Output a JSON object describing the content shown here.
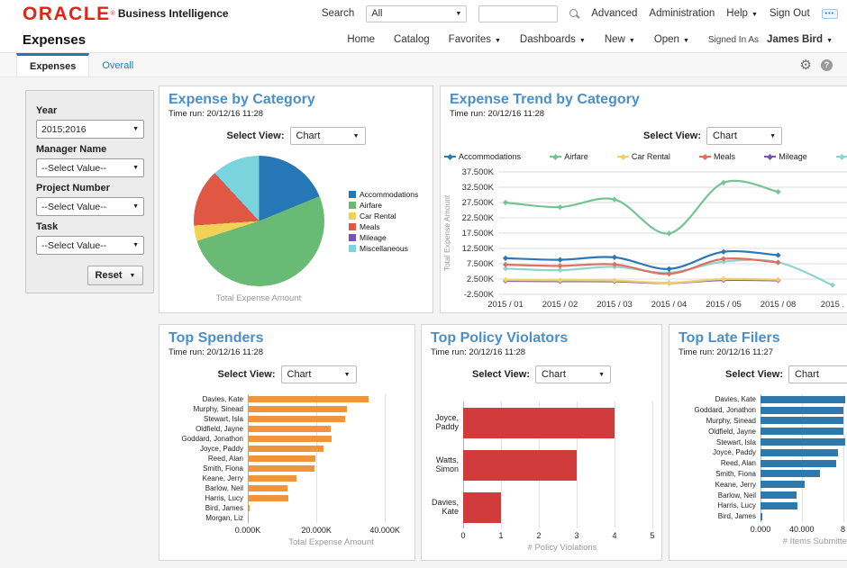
{
  "brand": {
    "logo": "ORACLE",
    "registered": "®",
    "product": "Business Intelligence"
  },
  "icons": {
    "dropdown_arrow": "▼",
    "settings_gear": "⚙",
    "help_badge": "?",
    "more_options": "•••"
  },
  "topbar": {
    "search_label": "Search",
    "scope_value": "All",
    "search_value": "",
    "links": {
      "advanced": "Advanced",
      "administration": "Administration",
      "help": "Help",
      "sign_out": "Sign Out"
    }
  },
  "navbar": {
    "page_title": "Expenses",
    "links": [
      "Home",
      "Catalog",
      "Favorites",
      "Dashboards",
      "New",
      "Open"
    ],
    "signed_in_as": "Signed In As",
    "user": "James Bird"
  },
  "tabs": {
    "active": "Expenses",
    "items": [
      "Expenses",
      "Overall"
    ]
  },
  "filters": {
    "fields": [
      {
        "label": "Year",
        "value": "2015;2016"
      },
      {
        "label": "Manager Name",
        "value": "--Select Value--"
      },
      {
        "label": "Project Number",
        "value": "--Select Value--"
      },
      {
        "label": "Task",
        "value": "--Select Value--"
      }
    ],
    "reset_label": "Reset"
  },
  "select_view_label": "Select View:",
  "chart_data": [
    {
      "type": "pie",
      "title": "Expense by Category",
      "time_run": "Time run: 20/12/16 11:28",
      "select_view": "Chart",
      "caption": "Total Expense Amount",
      "labels": [
        "Accommodations",
        "Airfare",
        "Car Rental",
        "Meals",
        "Mileage",
        "Miscellaneous"
      ],
      "values_pct": [
        18.8,
        51.2,
        3.9,
        14.1,
        0.1,
        11.9
      ],
      "colors": [
        "#2577b5",
        "#68ba74",
        "#f2d158",
        "#e05743",
        "#7a52b3",
        "#7ad4de"
      ]
    },
    {
      "type": "line",
      "title": "Expense Trend by Category",
      "time_run": "Time run: 20/12/16 11:28",
      "select_view": "Chart",
      "ylabel": "Total Expense Amount",
      "x_labels": [
        "2015 / 01",
        "2015 / 02",
        "2015 / 03",
        "2015 / 04",
        "2015 / 05",
        "2015 / 08",
        "2015 ."
      ],
      "y_ticks": [
        "37.500K",
        "32.500K",
        "27.500K",
        "22.500K",
        "17.500K",
        "12.500K",
        "7.500K",
        "2.500K",
        "-2.500K"
      ],
      "ylim": [
        -2500,
        37500
      ],
      "series": [
        {
          "name": "Accommodations",
          "color": "#2a78b5",
          "values": [
            9300,
            8800,
            9600,
            5800,
            11400,
            10300
          ]
        },
        {
          "name": "Airfare",
          "color": "#74c494",
          "values": [
            27500,
            26000,
            28500,
            17400,
            34000,
            31000
          ]
        },
        {
          "name": "Car Rental",
          "color": "#efd06a",
          "values": [
            2200,
            2100,
            2000,
            1300,
            2500,
            2300
          ]
        },
        {
          "name": "Meals",
          "color": "#dd7061",
          "values": [
            7200,
            6800,
            7300,
            4200,
            9100,
            7900
          ]
        },
        {
          "name": "Mileage",
          "color": "#7a52b3",
          "values": [
            1900,
            1800,
            1750,
            1200,
            2200,
            2050
          ]
        },
        {
          "name": "Miscellaneous",
          "color": "#8fd4cf",
          "values": [
            5900,
            5400,
            6500,
            4600,
            8200,
            8000,
            500
          ]
        }
      ]
    },
    {
      "type": "bar",
      "title": "Top Spenders",
      "time_run": "Time run: 20/12/16 11:28",
      "select_view": "Chart",
      "xlabel": "Total Expense Amount",
      "categories": [
        "Davies, Kate",
        "Murphy, Sinead",
        "Stewart, Isla",
        "Oldfield, Jayne",
        "Goddard, Jonathon",
        "Joyce, Paddy",
        "Reed, Alan",
        "Smith, Fiona",
        "Keane, Jerry",
        "Barlow, Neil",
        "Harris, Lucy",
        "Bird, James",
        "Morgan, Liz"
      ],
      "values": [
        35300,
        28900,
        28500,
        24200,
        24400,
        22000,
        19800,
        19400,
        14200,
        11600,
        11900,
        400,
        200
      ],
      "x_ticks": [
        "0.000K",
        "20.000K",
        "40.000K"
      ],
      "x_tick_vals": [
        0,
        20000,
        40000
      ],
      "xlim": [
        0,
        46000
      ],
      "color": "#f0953c"
    },
    {
      "type": "bar",
      "title": "Top Policy Violators",
      "time_run": "Time run: 20/12/16 11:28",
      "select_view": "Chart",
      "xlabel": "# Policy Violations",
      "categories": [
        "Joyce, Paddy",
        "Watts, Simon",
        "Davies, Kate"
      ],
      "values": [
        4,
        3,
        1
      ],
      "x_ticks": [
        "0",
        "1",
        "2",
        "3",
        "4",
        "5"
      ],
      "x_tick_vals": [
        0,
        1,
        2,
        3,
        4,
        5
      ],
      "xlim": [
        0,
        5
      ],
      "color": "#d13b3b"
    },
    {
      "type": "bar",
      "title": "Top Late Filers",
      "time_run": "Time run: 20/12/16 11:27",
      "select_view": "Chart",
      "xlabel": "# Items Submitted Af",
      "categories": [
        "Davies, Kate",
        "Goddard, Jonathon",
        "Murphy, Sinead",
        "Oldfield, Jayne",
        "Stewart, Isla",
        "Joyce, Paddy",
        "Reed, Alan",
        "Smith, Fiona",
        "Keane, Jerry",
        "Barlow, Neil",
        "Harris, Lucy",
        "Bird, James"
      ],
      "values": [
        82000,
        80000,
        80000,
        80000,
        82000,
        75000,
        73000,
        58000,
        43000,
        35000,
        35500,
        2000
      ],
      "x_ticks": [
        "0.000",
        "40.000",
        "8"
      ],
      "x_tick_vals": [
        0,
        40000,
        80000
      ],
      "xlim": [
        0,
        111000
      ],
      "color": "#2d78ad"
    }
  ]
}
